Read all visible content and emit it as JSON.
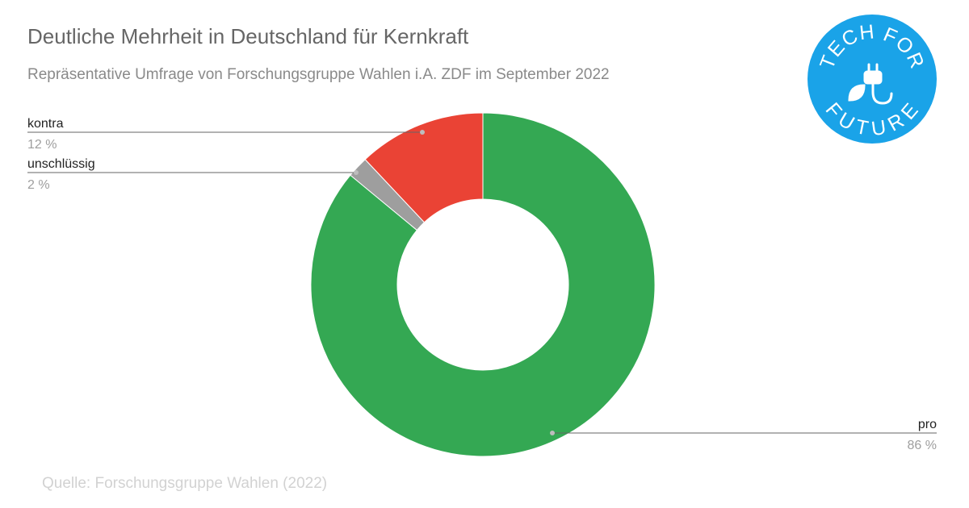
{
  "chart_data": {
    "type": "pie",
    "title": "Deutliche Mehrheit in Deutschland für Kernkraft",
    "subtitle": "Repräsentative Umfrage von Forschungsgruppe Wahlen i.A. ZDF im September 2022",
    "source": "Quelle: Forschungsgruppe Wahlen (2022)",
    "donut": true,
    "slices": [
      {
        "label": "pro",
        "value": 86,
        "value_label": "86 %",
        "color": "#34a853"
      },
      {
        "label": "unschlüssig",
        "value": 2,
        "value_label": "2 %",
        "color": "#9e9e9e"
      },
      {
        "label": "kontra",
        "value": 12,
        "value_label": "12 %",
        "color": "#ea4335"
      }
    ]
  },
  "logo": {
    "top_text": "TECH FOR",
    "bottom_text": "FUTURE",
    "color": "#1aa3e8",
    "icon": "plug-leaf-icon"
  }
}
